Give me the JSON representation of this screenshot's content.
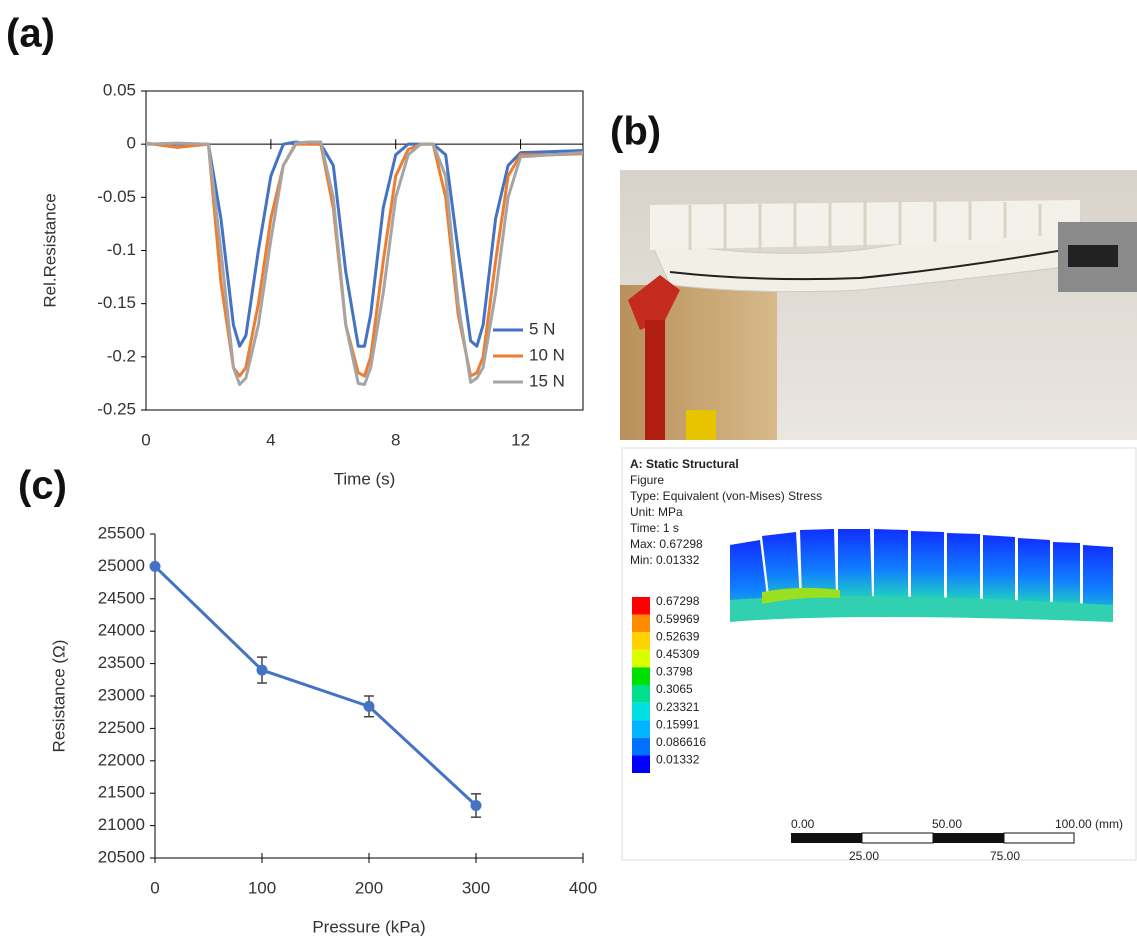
{
  "panels": {
    "a": "(a)",
    "b": "(b)",
    "c": "(c)"
  },
  "chart_data": [
    {
      "type": "line",
      "xlabel": "Time (s)",
      "ylabel": "Rel.Resistance",
      "x": [
        0,
        1,
        2,
        2.4,
        2.8,
        3,
        3.2,
        3.6,
        4,
        4.4,
        4.8,
        5.2,
        5.6,
        6,
        6.4,
        6.8,
        7,
        7.2,
        7.6,
        8,
        8.4,
        8.8,
        9.2,
        9.6,
        10,
        10.4,
        10.6,
        10.8,
        11.2,
        11.6,
        12,
        13,
        14
      ],
      "series": [
        {
          "name": "5 N",
          "color": "#4472c4",
          "values": [
            0,
            0,
            0,
            -0.07,
            -0.17,
            -0.19,
            -0.18,
            -0.1,
            -0.03,
            0,
            0.002,
            0,
            0,
            -0.02,
            -0.12,
            -0.19,
            -0.19,
            -0.16,
            -0.06,
            -0.01,
            0,
            0,
            0,
            -0.01,
            -0.1,
            -0.185,
            -0.19,
            -0.17,
            -0.07,
            -0.02,
            -0.008,
            -0.007,
            -0.006
          ]
        },
        {
          "name": "10 N",
          "color": "#ed7d31",
          "values": [
            0.001,
            -0.003,
            0,
            -0.13,
            -0.21,
            -0.218,
            -0.21,
            -0.15,
            -0.07,
            -0.02,
            0,
            0,
            0,
            -0.06,
            -0.17,
            -0.215,
            -0.218,
            -0.2,
            -0.11,
            -0.03,
            -0.005,
            0,
            0,
            -0.05,
            -0.16,
            -0.218,
            -0.215,
            -0.2,
            -0.11,
            -0.03,
            -0.01,
            -0.01,
            -0.009
          ]
        },
        {
          "name": "15 N",
          "color": "#a5a5a5",
          "values": [
            0,
            0.001,
            0,
            -0.1,
            -0.21,
            -0.226,
            -0.22,
            -0.17,
            -0.09,
            -0.02,
            0.001,
            0.002,
            0.002,
            -0.05,
            -0.17,
            -0.225,
            -0.226,
            -0.21,
            -0.14,
            -0.05,
            -0.01,
            0,
            0,
            -0.03,
            -0.15,
            -0.224,
            -0.22,
            -0.21,
            -0.14,
            -0.05,
            -0.012,
            -0.01,
            -0.008
          ]
        }
      ],
      "xlim": [
        0,
        14
      ],
      "xticks": [
        0,
        4,
        8,
        12
      ],
      "ylim": [
        -0.25,
        0.05
      ],
      "yticks": [
        0.05,
        0,
        -0.05,
        -0.1,
        -0.15,
        -0.2,
        -0.25
      ],
      "frame": true,
      "legend": "lower right"
    },
    {
      "type": "line",
      "xlabel": "Pressure (kPa)",
      "ylabel": "Resistance (Ω)",
      "x": [
        0,
        100,
        200,
        300
      ],
      "series": [
        {
          "name": null,
          "color": "#4472c4",
          "values": [
            25000,
            23400,
            22840,
            21310
          ],
          "errors": [
            20,
            200,
            160,
            180
          ]
        }
      ],
      "xlim": [
        0,
        400
      ],
      "xticks": [
        0,
        100,
        200,
        300,
        400
      ],
      "ylim": [
        20500,
        25500
      ],
      "yticks": [
        20500,
        21000,
        21500,
        22000,
        22500,
        23000,
        23500,
        24000,
        24500,
        25000,
        25500
      ],
      "markers": true,
      "frame": false
    }
  ],
  "fea": {
    "lines": [
      "A: Static Structural",
      "Figure",
      "Type: Equivalent (von-Mises) Stress",
      "Unit: MPa",
      "Time: 1 s",
      "Max: 0.67298",
      "Min: 0.01332"
    ],
    "legend": [
      "0.67298",
      "0.59969",
      "0.52639",
      "0.45309",
      "0.3798",
      "0.3065",
      "0.23321",
      "0.15991",
      "0.086616",
      "0.01332"
    ],
    "legend_colors": [
      "#ff0000",
      "#ff8c00",
      "#ffd200",
      "#d7ff00",
      "#00e000",
      "#00e08c",
      "#00e0e0",
      "#00b4ff",
      "#0070ff",
      "#0000ff"
    ],
    "scale_top": [
      "0.00",
      "50.00",
      "100.00 (mm)"
    ],
    "scale_bottom": [
      "25.00",
      "75.00"
    ]
  }
}
